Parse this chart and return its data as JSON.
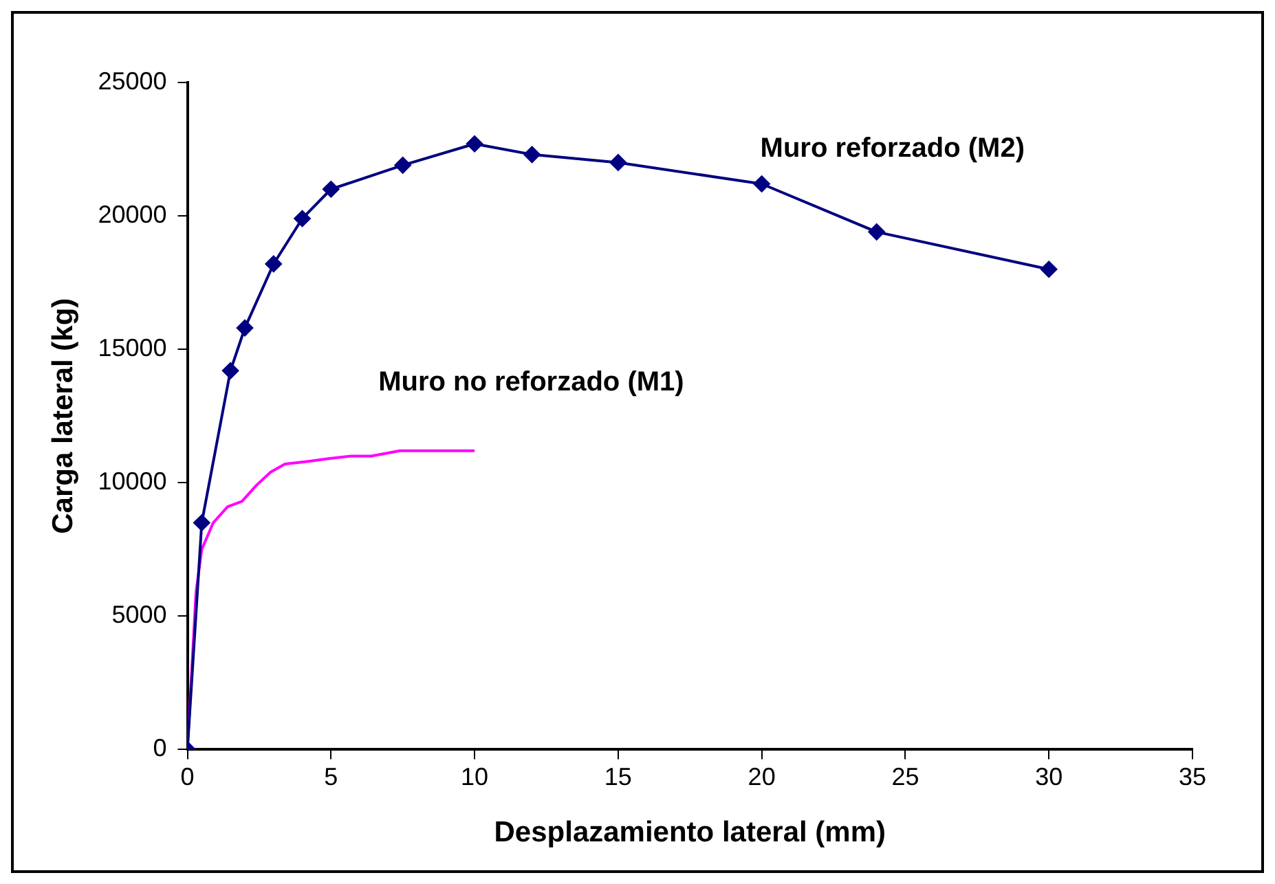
{
  "chart_data": {
    "type": "line",
    "xlabel": "Desplazamiento lateral (mm)",
    "ylabel": "Carga lateral (kg)",
    "xlim": [
      0,
      35
    ],
    "xticks": [
      0,
      5,
      10,
      15,
      20,
      25,
      30,
      35
    ],
    "ylim": [
      0,
      25000
    ],
    "yticks": [
      0,
      5000,
      10000,
      15000,
      20000,
      25000
    ],
    "grid": false,
    "legend": false,
    "line_style": "solid",
    "series": [
      {
        "name": "Muro reforzado (M2)",
        "color": "#000080",
        "marker": "diamond",
        "x": [
          0,
          0.5,
          1.5,
          2,
          3,
          4,
          5,
          7.5,
          10,
          12,
          15,
          20,
          24,
          30
        ],
        "values": [
          0,
          8500,
          14200,
          15800,
          18200,
          19900,
          21000,
          21900,
          22700,
          22300,
          22000,
          21200,
          19400,
          18000
        ]
      },
      {
        "name": "Muro no reforzado (M1)",
        "color": "#ff00ff",
        "marker": "none",
        "x": [
          0,
          0.3,
          0.5,
          0.9,
          1.4,
          1.9,
          2.4,
          2.9,
          3.4,
          4.2,
          4.9,
          5.7,
          6.4,
          7.4,
          10
        ],
        "values": [
          0,
          5900,
          7500,
          8500,
          9100,
          9300,
          9900,
          10400,
          10700,
          10800,
          10900,
          11000,
          11000,
          11200,
          11200
        ]
      }
    ]
  }
}
